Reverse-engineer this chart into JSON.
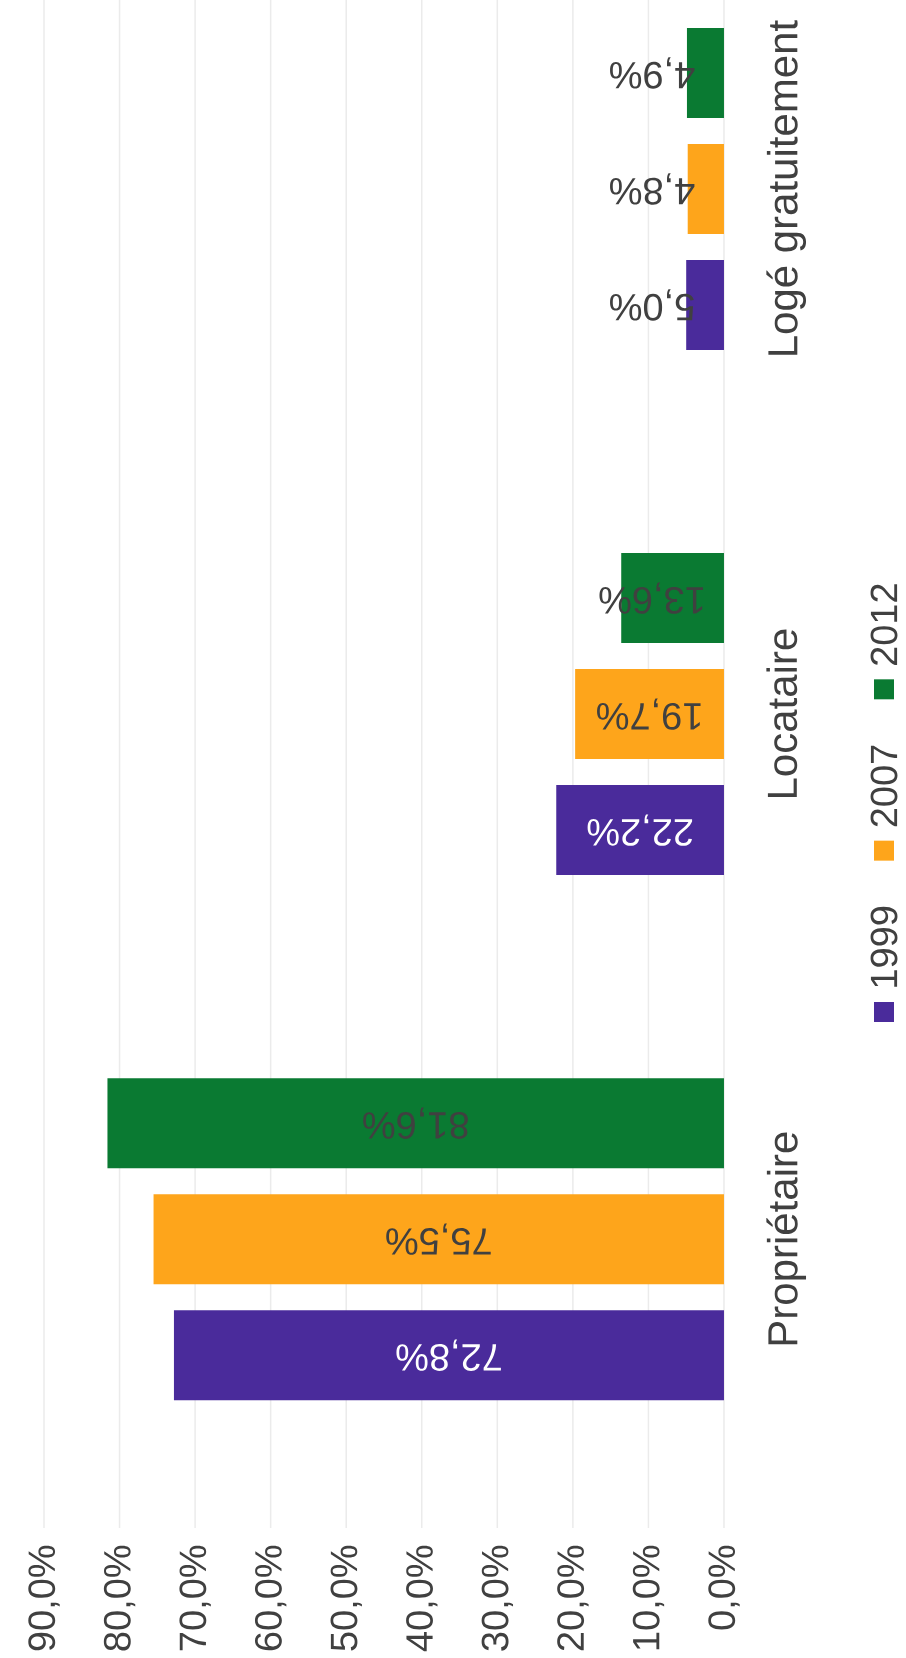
{
  "chart_data": {
    "type": "bar",
    "orientation": "horizontal",
    "categories": [
      "Logé gratuitement",
      "Locataire",
      "Propriétaire"
    ],
    "series": [
      {
        "name": "1999",
        "color": "#4a2b9b",
        "values": [
          5.0,
          22.2,
          72.8
        ],
        "value_labels": [
          "5,0%",
          "22,2%",
          "72,8%"
        ]
      },
      {
        "name": "2007",
        "color": "#fea51b",
        "values": [
          4.8,
          19.7,
          75.5
        ],
        "value_labels": [
          "4,8%",
          "19,7%",
          "75,5%"
        ]
      },
      {
        "name": "2012",
        "color": "#0a7a32",
        "values": [
          4.9,
          13.6,
          81.6
        ],
        "value_labels": [
          "4,9%",
          "13,6%",
          "81,6%"
        ]
      }
    ],
    "xlim": [
      90,
      0
    ],
    "xticks": [
      {
        "value": 90,
        "label": "90,0%"
      },
      {
        "value": 80,
        "label": "80,0%"
      },
      {
        "value": 70,
        "label": "70,0%"
      },
      {
        "value": 60,
        "label": "60,0%"
      },
      {
        "value": 50,
        "label": "50,0%"
      },
      {
        "value": 40,
        "label": "40,0%"
      },
      {
        "value": 30,
        "label": "30,0%"
      },
      {
        "value": 20,
        "label": "20,0%"
      },
      {
        "value": 10,
        "label": "10,0%"
      },
      {
        "value": 0,
        "label": "0,0%"
      }
    ],
    "grid": "x",
    "legend": "right"
  }
}
